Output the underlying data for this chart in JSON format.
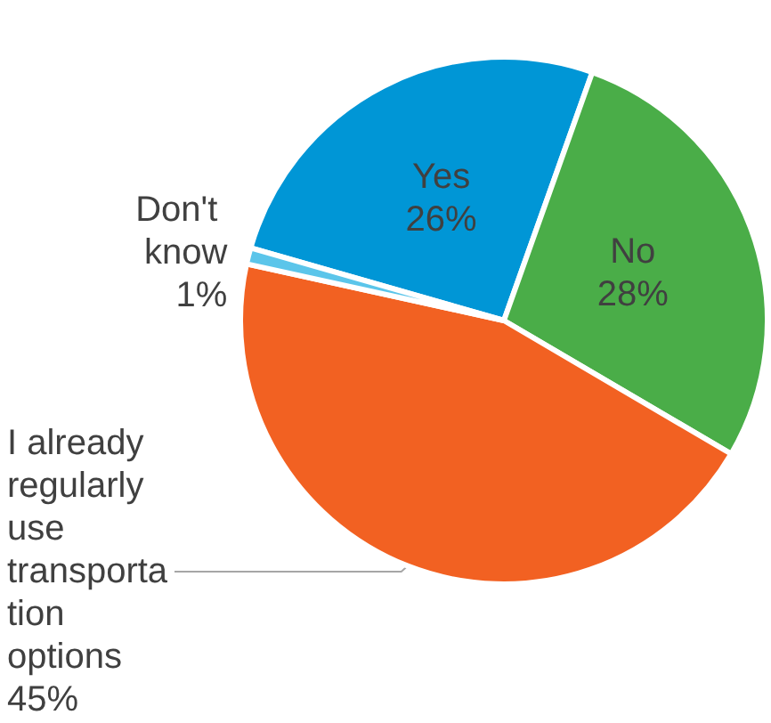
{
  "chart_data": {
    "type": "pie",
    "categories": [
      "Yes",
      "No",
      "I already regularly use transportation options",
      "Don't know"
    ],
    "values": [
      26,
      28,
      45,
      1
    ],
    "value_labels": [
      "26%",
      "28%",
      "45%",
      "1%"
    ],
    "colors": [
      "#0096d6",
      "#4aad48",
      "#f26122",
      "#5bc5ea"
    ],
    "legend": false
  }
}
